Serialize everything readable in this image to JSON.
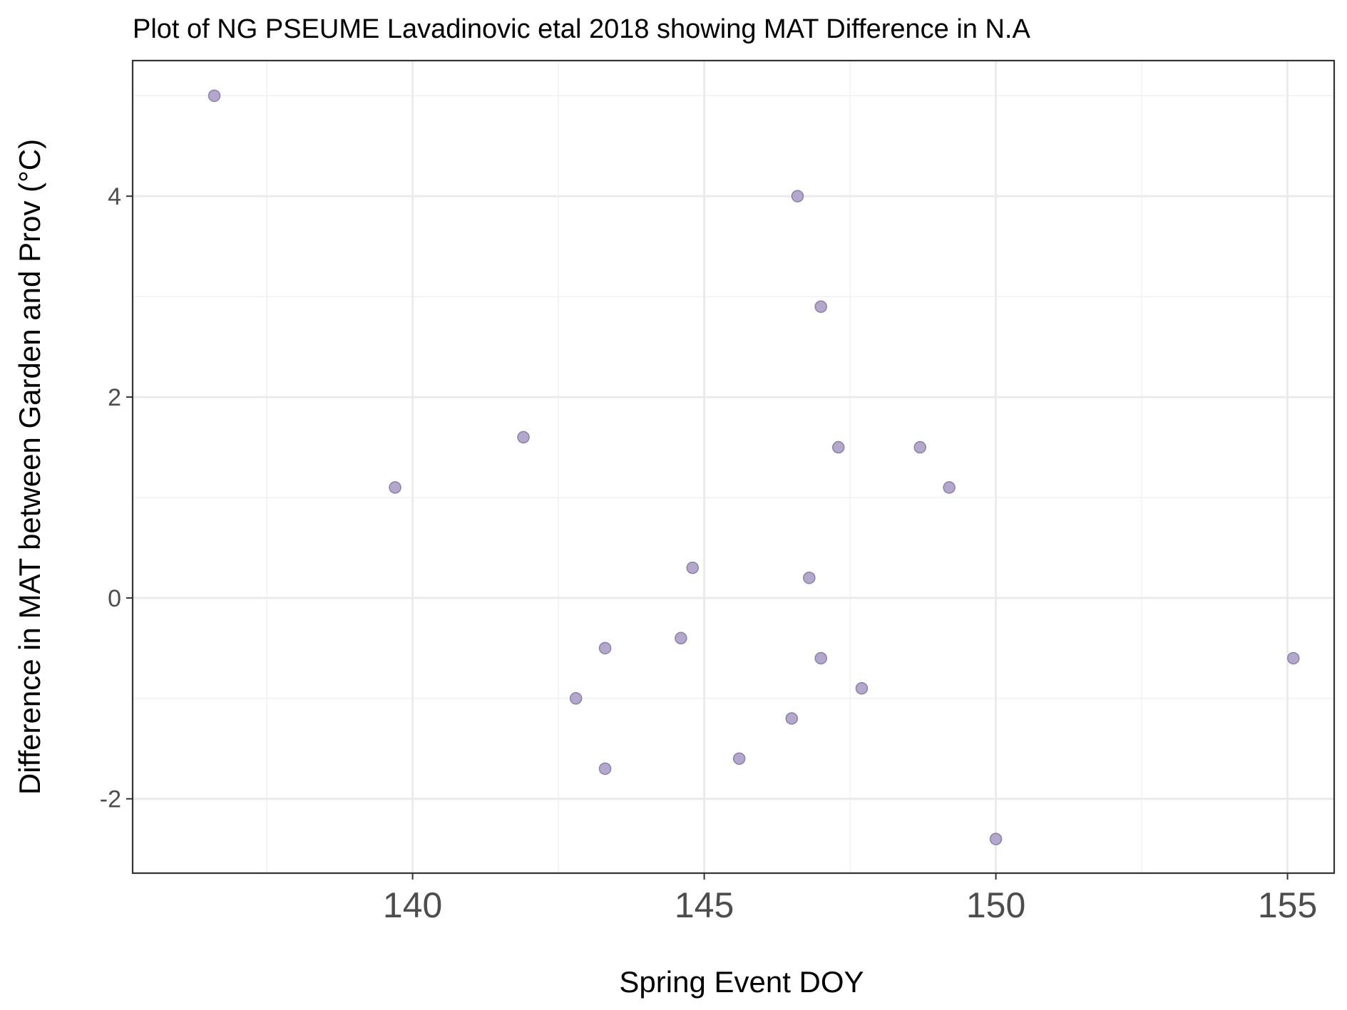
{
  "chart_data": {
    "type": "scatter",
    "title": "Plot of NG PSEUME Lavadinovic etal 2018 showing MAT Difference in N.A",
    "xlabel": "Spring Event DOY",
    "ylabel": "Difference in MAT between Garden and Prov (°C)",
    "xlim": [
      135.2,
      155.8
    ],
    "ylim": [
      -2.74,
      5.35
    ],
    "xticks": [
      140,
      145,
      150,
      155
    ],
    "yticks": [
      -2,
      0,
      2,
      4
    ],
    "x_tick_labels": [
      "140",
      "145",
      "150",
      "155"
    ],
    "y_tick_labels": [
      "-2",
      "0",
      "2",
      "4"
    ],
    "grid": true,
    "point_color": "#b3a8cc",
    "points": [
      {
        "x": 136.6,
        "y": 5.0
      },
      {
        "x": 139.7,
        "y": 1.1
      },
      {
        "x": 141.9,
        "y": 1.6
      },
      {
        "x": 142.8,
        "y": -1.0
      },
      {
        "x": 143.3,
        "y": -0.5
      },
      {
        "x": 143.3,
        "y": -1.7
      },
      {
        "x": 144.6,
        "y": -0.4
      },
      {
        "x": 144.8,
        "y": 0.3
      },
      {
        "x": 145.6,
        "y": -1.6
      },
      {
        "x": 146.5,
        "y": -1.2
      },
      {
        "x": 146.6,
        "y": 4.0
      },
      {
        "x": 146.8,
        "y": 0.2
      },
      {
        "x": 147.0,
        "y": 2.9
      },
      {
        "x": 147.0,
        "y": -0.6
      },
      {
        "x": 147.3,
        "y": 1.5
      },
      {
        "x": 147.7,
        "y": -0.9
      },
      {
        "x": 148.7,
        "y": 1.5
      },
      {
        "x": 149.2,
        "y": 1.1
      },
      {
        "x": 150.0,
        "y": -2.4
      },
      {
        "x": 155.1,
        "y": -0.6
      }
    ]
  }
}
